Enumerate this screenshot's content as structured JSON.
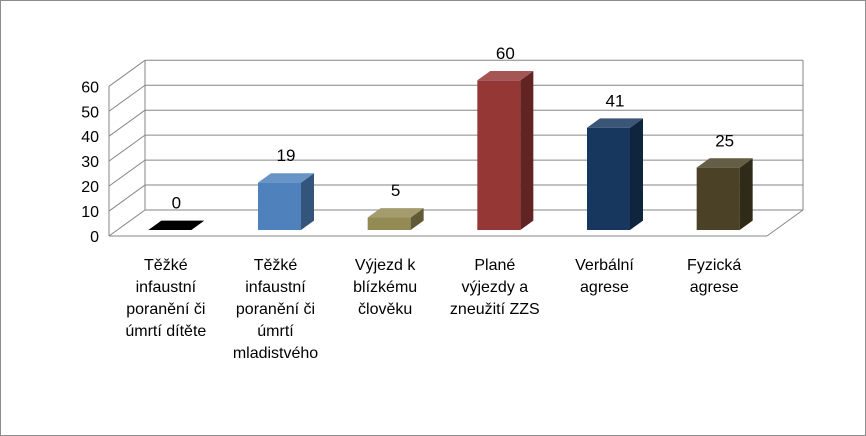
{
  "chart_data": {
    "type": "bar",
    "style": "3d-column",
    "categories": [
      [
        "Těžké",
        "infaustní",
        "poranění či",
        "úmrtí dítěte"
      ],
      [
        "Těžké",
        "infaustní",
        "poranění či",
        "úmrtí",
        "mladistvého"
      ],
      [
        "Výjezd k",
        "blízkému",
        "člověku"
      ],
      [
        "Plané",
        "výjezdy a",
        "zneužití  ZZS"
      ],
      [
        "Verbální",
        "agrese"
      ],
      [
        "Fyzická",
        "agrese"
      ]
    ],
    "values": [
      0,
      19,
      5,
      60,
      41,
      25
    ],
    "value_labels": [
      "0",
      "19",
      "5",
      "60",
      "41",
      "25"
    ],
    "bar_colors": [
      "#000000",
      "#4f81bd",
      "#948a54",
      "#953735",
      "#17375e",
      "#4a4126"
    ],
    "y_ticks": [
      "0",
      "10",
      "20",
      "30",
      "40",
      "50",
      "60"
    ],
    "ylim": [
      0,
      60
    ],
    "grid": true,
    "legend": "none",
    "title": "",
    "xlabel": "",
    "ylabel": ""
  }
}
